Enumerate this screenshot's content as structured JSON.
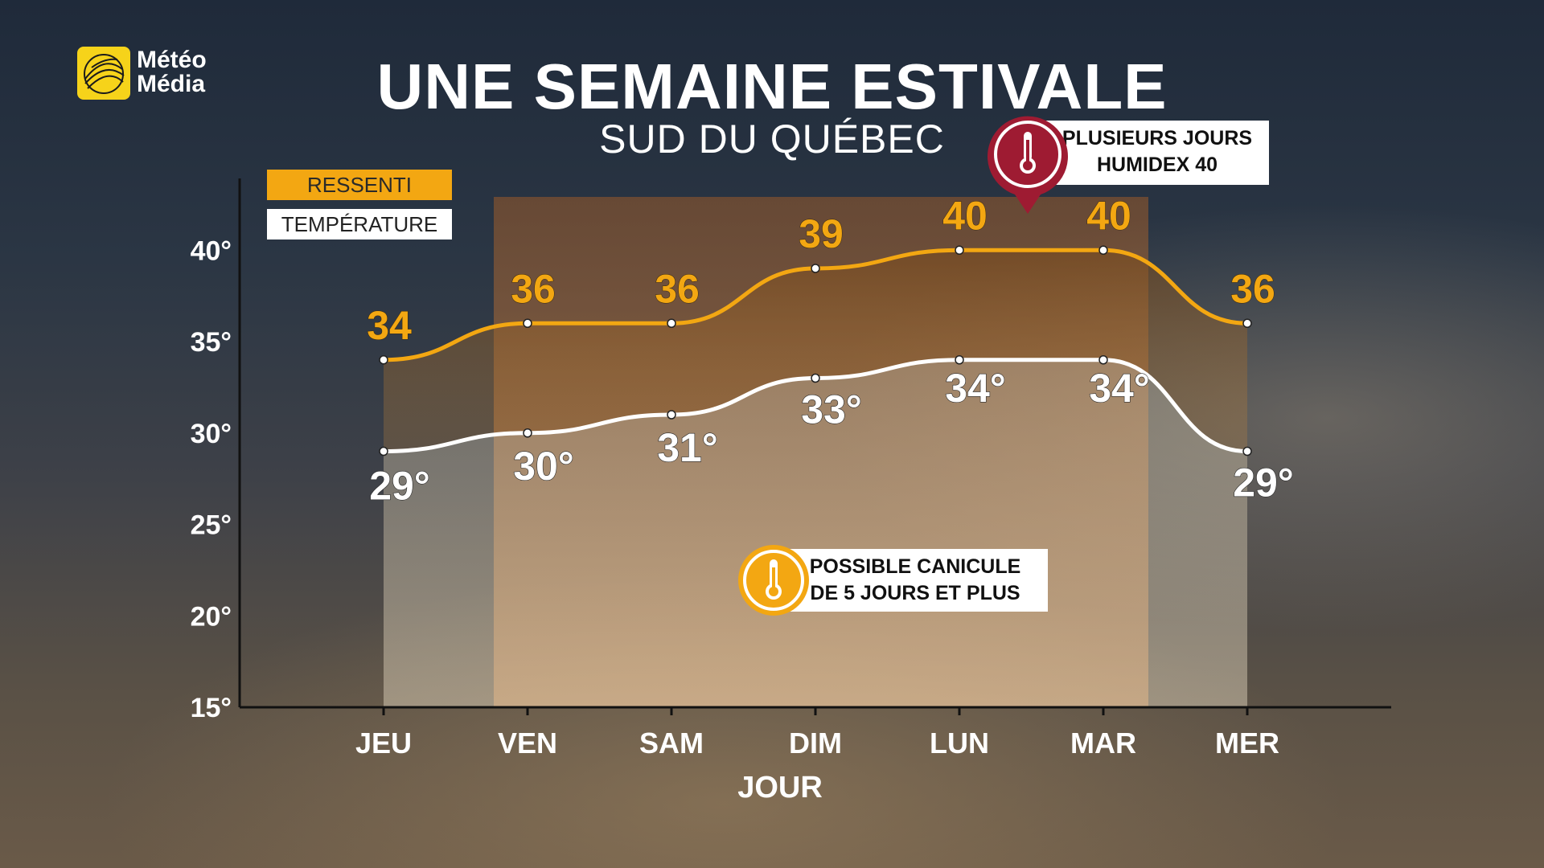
{
  "brand": {
    "line1": "Météo",
    "line2": "Média"
  },
  "header": {
    "title": "UNE SEMAINE ESTIVALE",
    "subtitle": "SUD DU QUÉBEC"
  },
  "legend": {
    "feels_like": "RESSENTI",
    "temperature": "TEMPÉRATURE"
  },
  "callouts": {
    "humidex": {
      "line1": "PLUSIEURS JOURS",
      "line2": "HUMIDEX 40"
    },
    "canicule": {
      "line1": "POSSIBLE CANICULE",
      "line2": "DE 5 JOURS ET PLUS"
    }
  },
  "colors": {
    "feels_line": "#f3a712",
    "temp_line": "#ffffff",
    "axis": "#111111",
    "canicule_icon": "#f3a712",
    "humidex_icon": "#9e1b32"
  },
  "chart_data": {
    "type": "line",
    "categories": [
      "JEU",
      "VEN",
      "SAM",
      "DIM",
      "LUN",
      "MAR",
      "MER"
    ],
    "xlabel": "JOUR",
    "ylabel": "",
    "yticks": [
      "15°",
      "20°",
      "25°",
      "30°",
      "35°",
      "40°"
    ],
    "ylim": [
      15,
      43
    ],
    "series": [
      {
        "name": "RESSENTI",
        "values": [
          34,
          36,
          36,
          39,
          40,
          40,
          36
        ],
        "labels": [
          "34",
          "36",
          "36",
          "39",
          "40",
          "40",
          "36"
        ]
      },
      {
        "name": "TEMPÉRATURE",
        "values": [
          29,
          30,
          31,
          33,
          34,
          34,
          29
        ],
        "labels": [
          "29°",
          "30°",
          "31°",
          "33°",
          "34°",
          "34°",
          "29°"
        ]
      }
    ],
    "highlight_range": [
      "VEN",
      "MAR"
    ],
    "grid": false,
    "legend_position": "top-left"
  }
}
